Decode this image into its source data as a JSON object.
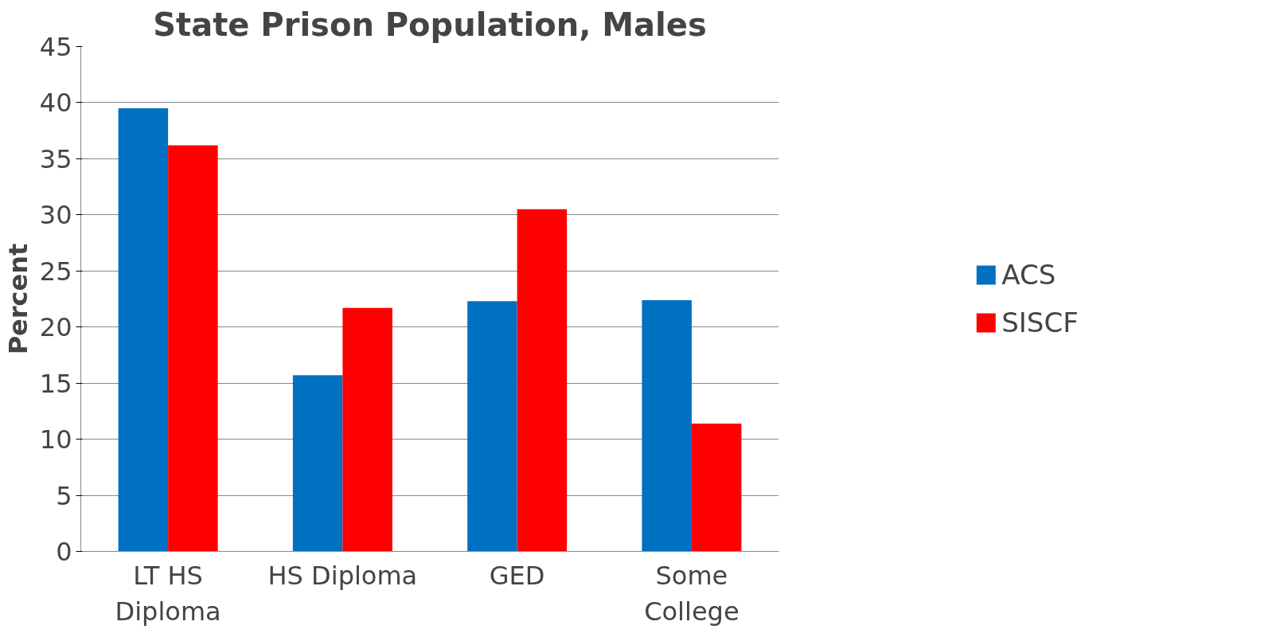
{
  "chart_data": {
    "type": "bar",
    "title": "State Prison Population, Males",
    "ylabel": "Percent",
    "categories": [
      "LT HS Diploma",
      "HS Diploma",
      "GED",
      "Some College"
    ],
    "series": [
      {
        "name": "ACS",
        "color": "#0070c0",
        "values": [
          39.5,
          15.7,
          22.3,
          22.4
        ]
      },
      {
        "name": "SISCF",
        "color": "#ff0000",
        "values": [
          36.2,
          21.7,
          30.5,
          11.4
        ]
      }
    ],
    "ylim": [
      0,
      45
    ],
    "yticks": [
      0,
      5,
      10,
      15,
      20,
      25,
      30,
      35,
      40,
      45
    ],
    "grid": "y",
    "legend": "right"
  }
}
